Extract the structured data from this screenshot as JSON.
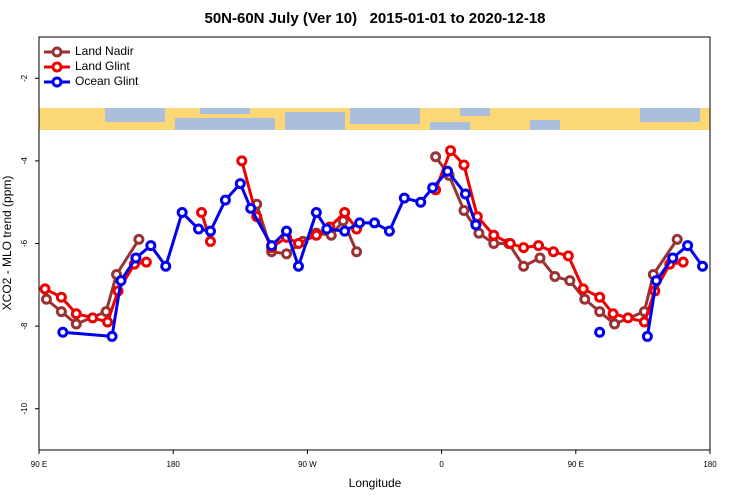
{
  "chart_data": {
    "type": "line",
    "title": "50N-60N July (Ver 10)   2015-01-01 to 2020-12-18",
    "x_label": "Longitude",
    "y_label": "XCO2 - MLO trend (ppm)",
    "xlim": [
      90,
      540
    ],
    "ylim": [
      -11,
      -1
    ],
    "xticks": [
      {
        "value": 90,
        "label": "90 E"
      },
      180,
      {
        "value": 270,
        "label": "90 W"
      },
      {
        "value": 360,
        "label": "0"
      },
      {
        "value": 450,
        "label": "90 E"
      },
      {
        "value": 540,
        "label": "180"
      }
    ],
    "yticks": [
      -10,
      -8,
      -6,
      -4,
      -2
    ],
    "legend": "top-left",
    "series": [
      {
        "name": "Land Nadir",
        "color": "#993333",
        "x": [
          95,
          105,
          115,
          135,
          142,
          157,
          null,
          236,
          246,
          256,
          267,
          276,
          286,
          294,
          303,
          null,
          356,
          365,
          375,
          385,
          395,
          405,
          415,
          426,
          436,
          446,
          456,
          466,
          476,
          496,
          502,
          518
        ],
        "values": [
          -7.35,
          -7.65,
          -7.95,
          -7.65,
          -6.75,
          -5.9,
          null,
          -5.05,
          -6.2,
          -6.25,
          -5.95,
          -5.75,
          -5.8,
          -5.45,
          -6.2,
          null,
          -3.9,
          -4.35,
          -5.2,
          -5.75,
          -6.0,
          -6.0,
          -6.55,
          -6.35,
          -6.8,
          -6.9,
          -7.35,
          -7.65,
          -7.95,
          -7.65,
          -6.75,
          -5.9
        ]
      },
      {
        "name": "Land Glint",
        "color": "#ee0000",
        "x": [
          94,
          105,
          115,
          126,
          136,
          143,
          154,
          162,
          null,
          199,
          205,
          null,
          226,
          236,
          246,
          256,
          264,
          276,
          285,
          295,
          303,
          null,
          356,
          366,
          375,
          384,
          395,
          406,
          415,
          425,
          435,
          445,
          455,
          466,
          475,
          485,
          496,
          503,
          513,
          522
        ],
        "values": [
          -7.1,
          -7.3,
          -7.7,
          -7.8,
          -7.9,
          -7.15,
          -6.5,
          -6.45,
          null,
          -5.25,
          -5.95,
          null,
          -4.0,
          -5.35,
          -6.1,
          -5.85,
          -6.0,
          -5.8,
          -5.6,
          -5.25,
          -5.65,
          null,
          -4.7,
          -3.75,
          -4.1,
          -5.35,
          -5.8,
          -6.0,
          -6.1,
          -6.05,
          -6.2,
          -6.3,
          -7.1,
          -7.3,
          -7.7,
          -7.8,
          -7.9,
          -7.15,
          -6.5,
          -6.45
        ]
      },
      {
        "name": "Ocean Glint",
        "color": "#0000ee",
        "x": [
          106,
          139,
          145,
          155,
          165,
          175,
          186,
          197,
          205,
          215,
          225,
          232,
          246,
          256,
          264,
          276,
          283,
          295,
          305,
          315,
          325,
          335,
          346,
          354,
          364,
          376,
          383,
          null,
          466,
          null,
          498,
          504,
          515,
          525,
          535
        ],
        "values": [
          -8.15,
          -8.25,
          -6.9,
          -6.35,
          -6.05,
          -6.55,
          -5.25,
          -5.65,
          -5.7,
          -4.95,
          -4.55,
          -5.15,
          -6.05,
          -5.7,
          -6.55,
          -5.25,
          -5.65,
          -5.7,
          -5.5,
          -5.5,
          -5.7,
          -4.9,
          -5.0,
          -4.65,
          -4.25,
          -4.8,
          -5.55,
          null,
          -8.15,
          null,
          -8.25,
          -6.9,
          -6.35,
          -6.05,
          -6.55
        ]
      }
    ]
  }
}
